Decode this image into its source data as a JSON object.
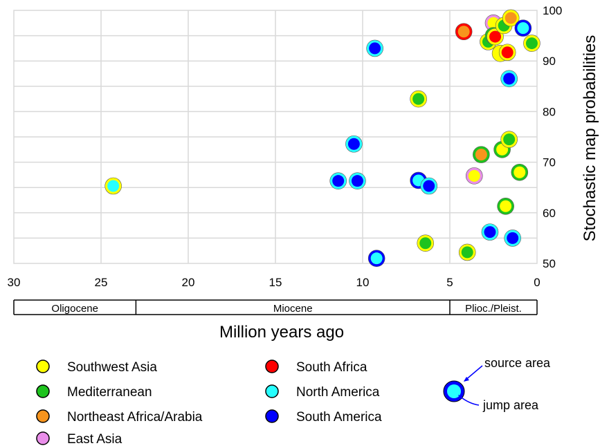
{
  "chart_data": {
    "type": "scatter",
    "title": "",
    "xlabel": "Million years ago",
    "ylabel": "Stochastic map probabilities",
    "xlim": [
      30,
      0
    ],
    "ylim": [
      50,
      100
    ],
    "x_reversed": true,
    "x_ticks": [
      "30",
      "25",
      "20",
      "15",
      "10",
      "5",
      "0"
    ],
    "y_ticks": [
      "50",
      "60",
      "70",
      "80",
      "90",
      "100"
    ],
    "grid": true,
    "legend_position": "bottom",
    "area_colors": {
      "Southwest Asia": "#ffff00",
      "Mediterranean": "#1ec31e",
      "Northeast Africa/Arabia": "#f7941d",
      "East Asia": "#e98ee9",
      "South Africa": "#ff0000",
      "North America": "#27ffff",
      "South America": "#0000ff"
    },
    "legend": [
      "Southwest Asia",
      "Mediterranean",
      "Northeast Africa/Arabia",
      "East Asia",
      "South Africa",
      "North America",
      "South America"
    ],
    "epochs": [
      {
        "name": "Oligocene",
        "from": 30,
        "to": 23
      },
      {
        "name": "Miocene",
        "from": 23,
        "to": 5
      },
      {
        "name": "Plioc./Pleist.",
        "from": 5,
        "to": 0
      }
    ],
    "annotations": {
      "source_label": "source area",
      "jump_label": "jump area"
    },
    "points": [
      {
        "x": 24.3,
        "y": 65.3,
        "source": "Southwest Asia",
        "jump": "North America"
      },
      {
        "x": 11.4,
        "y": 66.3,
        "source": "North America",
        "jump": "South America"
      },
      {
        "x": 10.3,
        "y": 66.3,
        "source": "North America",
        "jump": "South America"
      },
      {
        "x": 10.5,
        "y": 73.6,
        "source": "North America",
        "jump": "South America"
      },
      {
        "x": 9.3,
        "y": 92.5,
        "source": "North America",
        "jump": "South America"
      },
      {
        "x": 9.2,
        "y": 51.0,
        "source": "South America",
        "jump": "North America"
      },
      {
        "x": 6.8,
        "y": 66.4,
        "source": "South America",
        "jump": "North America"
      },
      {
        "x": 6.2,
        "y": 65.3,
        "source": "North America",
        "jump": "South America"
      },
      {
        "x": 6.8,
        "y": 82.5,
        "source": "Southwest Asia",
        "jump": "Mediterranean"
      },
      {
        "x": 6.4,
        "y": 54.0,
        "source": "Southwest Asia",
        "jump": "Mediterranean"
      },
      {
        "x": 4.2,
        "y": 95.8,
        "source": "South Africa",
        "jump": "Northeast Africa/Arabia"
      },
      {
        "x": 4.0,
        "y": 52.2,
        "source": "Southwest Asia",
        "jump": "Mediterranean"
      },
      {
        "x": 3.6,
        "y": 67.3,
        "source": "East Asia",
        "jump": "Southwest Asia"
      },
      {
        "x": 3.2,
        "y": 71.5,
        "source": "Mediterranean",
        "jump": "Northeast Africa/Arabia"
      },
      {
        "x": 2.8,
        "y": 93.8,
        "source": "Southwest Asia",
        "jump": "Mediterranean"
      },
      {
        "x": 2.7,
        "y": 56.2,
        "source": "North America",
        "jump": "South America"
      },
      {
        "x": 2.5,
        "y": 97.5,
        "source": "East Asia",
        "jump": "Southwest Asia"
      },
      {
        "x": 2.5,
        "y": 95.0,
        "source": "Mediterranean",
        "jump": "Mediterranean"
      },
      {
        "x": 2.4,
        "y": 94.8,
        "source": "Southwest Asia",
        "jump": "South Africa"
      },
      {
        "x": 2.1,
        "y": 91.5,
        "source": "Southwest Asia",
        "jump": "Southwest Asia"
      },
      {
        "x": 2.0,
        "y": 72.5,
        "source": "Mediterranean",
        "jump": "Southwest Asia"
      },
      {
        "x": 1.9,
        "y": 97.0,
        "source": "Southwest Asia",
        "jump": "Mediterranean"
      },
      {
        "x": 1.8,
        "y": 61.3,
        "source": "Mediterranean",
        "jump": "Southwest Asia"
      },
      {
        "x": 1.7,
        "y": 91.7,
        "source": "Southwest Asia",
        "jump": "South Africa"
      },
      {
        "x": 1.6,
        "y": 86.5,
        "source": "North America",
        "jump": "South America"
      },
      {
        "x": 1.6,
        "y": 74.5,
        "source": "Southwest Asia",
        "jump": "Mediterranean"
      },
      {
        "x": 1.5,
        "y": 98.5,
        "source": "Southwest Asia",
        "jump": "Northeast Africa/Arabia"
      },
      {
        "x": 1.4,
        "y": 55.0,
        "source": "North America",
        "jump": "South America"
      },
      {
        "x": 1.0,
        "y": 68.0,
        "source": "Mediterranean",
        "jump": "Southwest Asia"
      },
      {
        "x": 0.8,
        "y": 96.5,
        "source": "South America",
        "jump": "North America"
      },
      {
        "x": 0.3,
        "y": 93.5,
        "source": "Southwest Asia",
        "jump": "Mediterranean"
      }
    ]
  }
}
